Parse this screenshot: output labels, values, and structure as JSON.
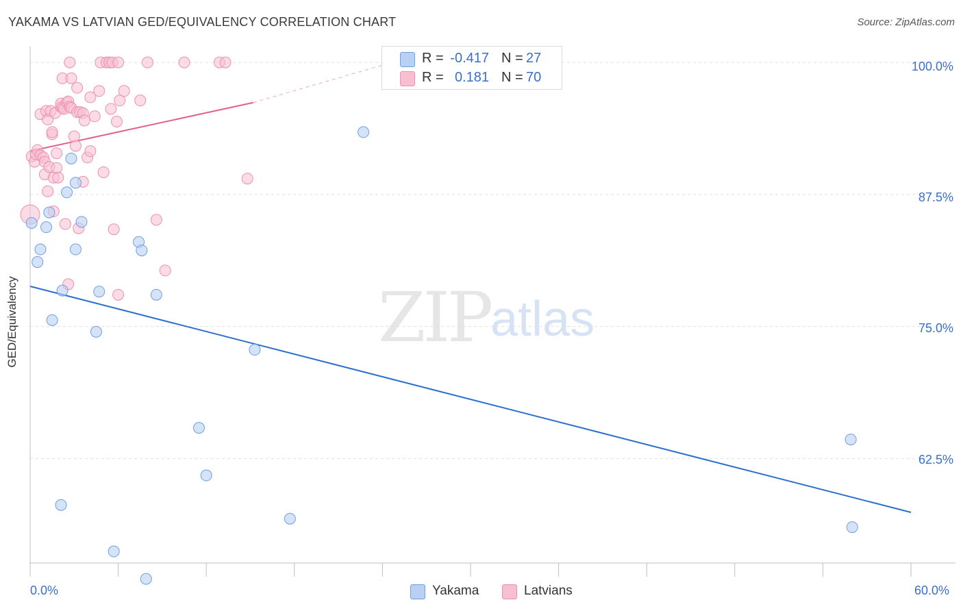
{
  "header": {
    "title": "YAKAMA VS LATVIAN GED/EQUIVALENCY CORRELATION CHART",
    "source": "Source: ZipAtlas.com"
  },
  "watermark": {
    "zip": "ZIP",
    "atlas": "atlas"
  },
  "legend": {
    "r_label": "R =",
    "n_label": "N =",
    "yakama": {
      "r": "-0.417",
      "n": "27"
    },
    "latvians": {
      "r": "0.181",
      "n": "70"
    }
  },
  "colors": {
    "yakama_fill": "#b9d0f3",
    "yakama_stroke": "#6f9ee2",
    "yakama_line": "#2a6fd0",
    "latvians_fill": "#f7c0d2",
    "latvians_stroke": "#ee8fae",
    "latvians_line": "#e4608b",
    "grid": "#e0e0e0",
    "tick_text": "#3a6fc9"
  },
  "chart_data": {
    "type": "scatter",
    "title": "YAKAMA VS LATVIAN GED/EQUIVALENCY CORRELATION CHART",
    "xlabel": "",
    "ylabel": "GED/Equivalency",
    "xlim": [
      0,
      60
    ],
    "ylim": [
      52.6,
      101.5
    ],
    "x_tick_labels": [
      "0.0%",
      "60.0%"
    ],
    "y_ticks": [
      62.5,
      75.0,
      87.5,
      100.0
    ],
    "y_tick_labels": [
      "62.5%",
      "75.0%",
      "87.5%",
      "100.0%"
    ],
    "grid": true,
    "legend_position": "top-center",
    "series": [
      {
        "name": "Yakama",
        "r": -0.417,
        "n": 27,
        "trend": {
          "x": [
            0,
            60
          ],
          "y": [
            78.8,
            57.4
          ]
        },
        "points": [
          [
            0.1,
            84.8
          ],
          [
            0.5,
            81.1
          ],
          [
            0.7,
            82.3
          ],
          [
            1.1,
            84.4
          ],
          [
            1.3,
            85.8
          ],
          [
            1.5,
            75.6
          ],
          [
            2.1,
            58.1
          ],
          [
            2.2,
            78.4
          ],
          [
            2.5,
            87.7
          ],
          [
            2.8,
            90.9
          ],
          [
            3.1,
            88.6
          ],
          [
            3.1,
            82.3
          ],
          [
            3.5,
            84.9
          ],
          [
            4.5,
            74.5
          ],
          [
            4.7,
            78.3
          ],
          [
            5.7,
            53.7
          ],
          [
            7.4,
            83.0
          ],
          [
            7.6,
            82.2
          ],
          [
            7.9,
            51.1
          ],
          [
            8.6,
            78.0
          ],
          [
            11.5,
            65.4
          ],
          [
            12.0,
            60.9
          ],
          [
            15.3,
            72.8
          ],
          [
            17.7,
            56.8
          ],
          [
            22.7,
            93.4
          ],
          [
            55.9,
            64.3
          ],
          [
            56.0,
            56.0
          ]
        ]
      },
      {
        "name": "Latvians",
        "r": 0.181,
        "n": 70,
        "trend": {
          "x": [
            0,
            15.2
          ],
          "y": [
            91.6,
            96.2
          ]
        },
        "trend_dashed": {
          "x": [
            15.2,
            24.4
          ],
          "y": [
            96.2,
            99.9
          ]
        },
        "points": [
          [
            0.0,
            85.6
          ],
          [
            0.1,
            91.1
          ],
          [
            0.3,
            90.6
          ],
          [
            0.4,
            91.3
          ],
          [
            0.5,
            91.7
          ],
          [
            0.7,
            91.2
          ],
          [
            0.7,
            95.1
          ],
          [
            0.9,
            91.0
          ],
          [
            1.0,
            89.4
          ],
          [
            1.0,
            90.6
          ],
          [
            1.1,
            95.4
          ],
          [
            1.2,
            94.6
          ],
          [
            1.2,
            87.8
          ],
          [
            1.3,
            90.1
          ],
          [
            1.4,
            95.4
          ],
          [
            1.5,
            93.2
          ],
          [
            1.5,
            93.4
          ],
          [
            1.6,
            89.1
          ],
          [
            1.6,
            85.9
          ],
          [
            1.7,
            95.2
          ],
          [
            1.8,
            91.4
          ],
          [
            1.8,
            90.0
          ],
          [
            1.9,
            89.1
          ],
          [
            2.1,
            95.8
          ],
          [
            2.1,
            96.1
          ],
          [
            2.2,
            98.5
          ],
          [
            2.2,
            95.7
          ],
          [
            2.3,
            95.6
          ],
          [
            2.4,
            84.7
          ],
          [
            2.5,
            96.2
          ],
          [
            2.6,
            96.3
          ],
          [
            2.6,
            79.0
          ],
          [
            2.7,
            100.0
          ],
          [
            2.7,
            95.8
          ],
          [
            2.8,
            95.7
          ],
          [
            2.8,
            98.5
          ],
          [
            3.0,
            93.0
          ],
          [
            3.1,
            92.1
          ],
          [
            3.2,
            97.6
          ],
          [
            3.2,
            95.3
          ],
          [
            3.3,
            84.3
          ],
          [
            3.4,
            95.3
          ],
          [
            3.6,
            95.2
          ],
          [
            3.6,
            88.7
          ],
          [
            3.7,
            94.5
          ],
          [
            3.9,
            91.0
          ],
          [
            4.1,
            96.7
          ],
          [
            4.1,
            91.6
          ],
          [
            4.4,
            94.9
          ],
          [
            4.7,
            97.3
          ],
          [
            4.8,
            100.0
          ],
          [
            5.0,
            89.6
          ],
          [
            5.2,
            100.0
          ],
          [
            5.4,
            100.0
          ],
          [
            5.5,
            95.6
          ],
          [
            5.6,
            100.0
          ],
          [
            5.7,
            84.2
          ],
          [
            5.9,
            94.4
          ],
          [
            6.0,
            78.0
          ],
          [
            6.0,
            100.0
          ],
          [
            6.1,
            96.4
          ],
          [
            6.4,
            97.3
          ],
          [
            7.5,
            96.4
          ],
          [
            8.0,
            100.0
          ],
          [
            8.6,
            85.1
          ],
          [
            9.2,
            80.3
          ],
          [
            10.5,
            100.0
          ],
          [
            12.9,
            100.0
          ],
          [
            13.3,
            100.0
          ],
          [
            14.8,
            89.0
          ]
        ]
      }
    ]
  },
  "bottom_legend": {
    "yakama": "Yakama",
    "latvians": "Latvians"
  }
}
